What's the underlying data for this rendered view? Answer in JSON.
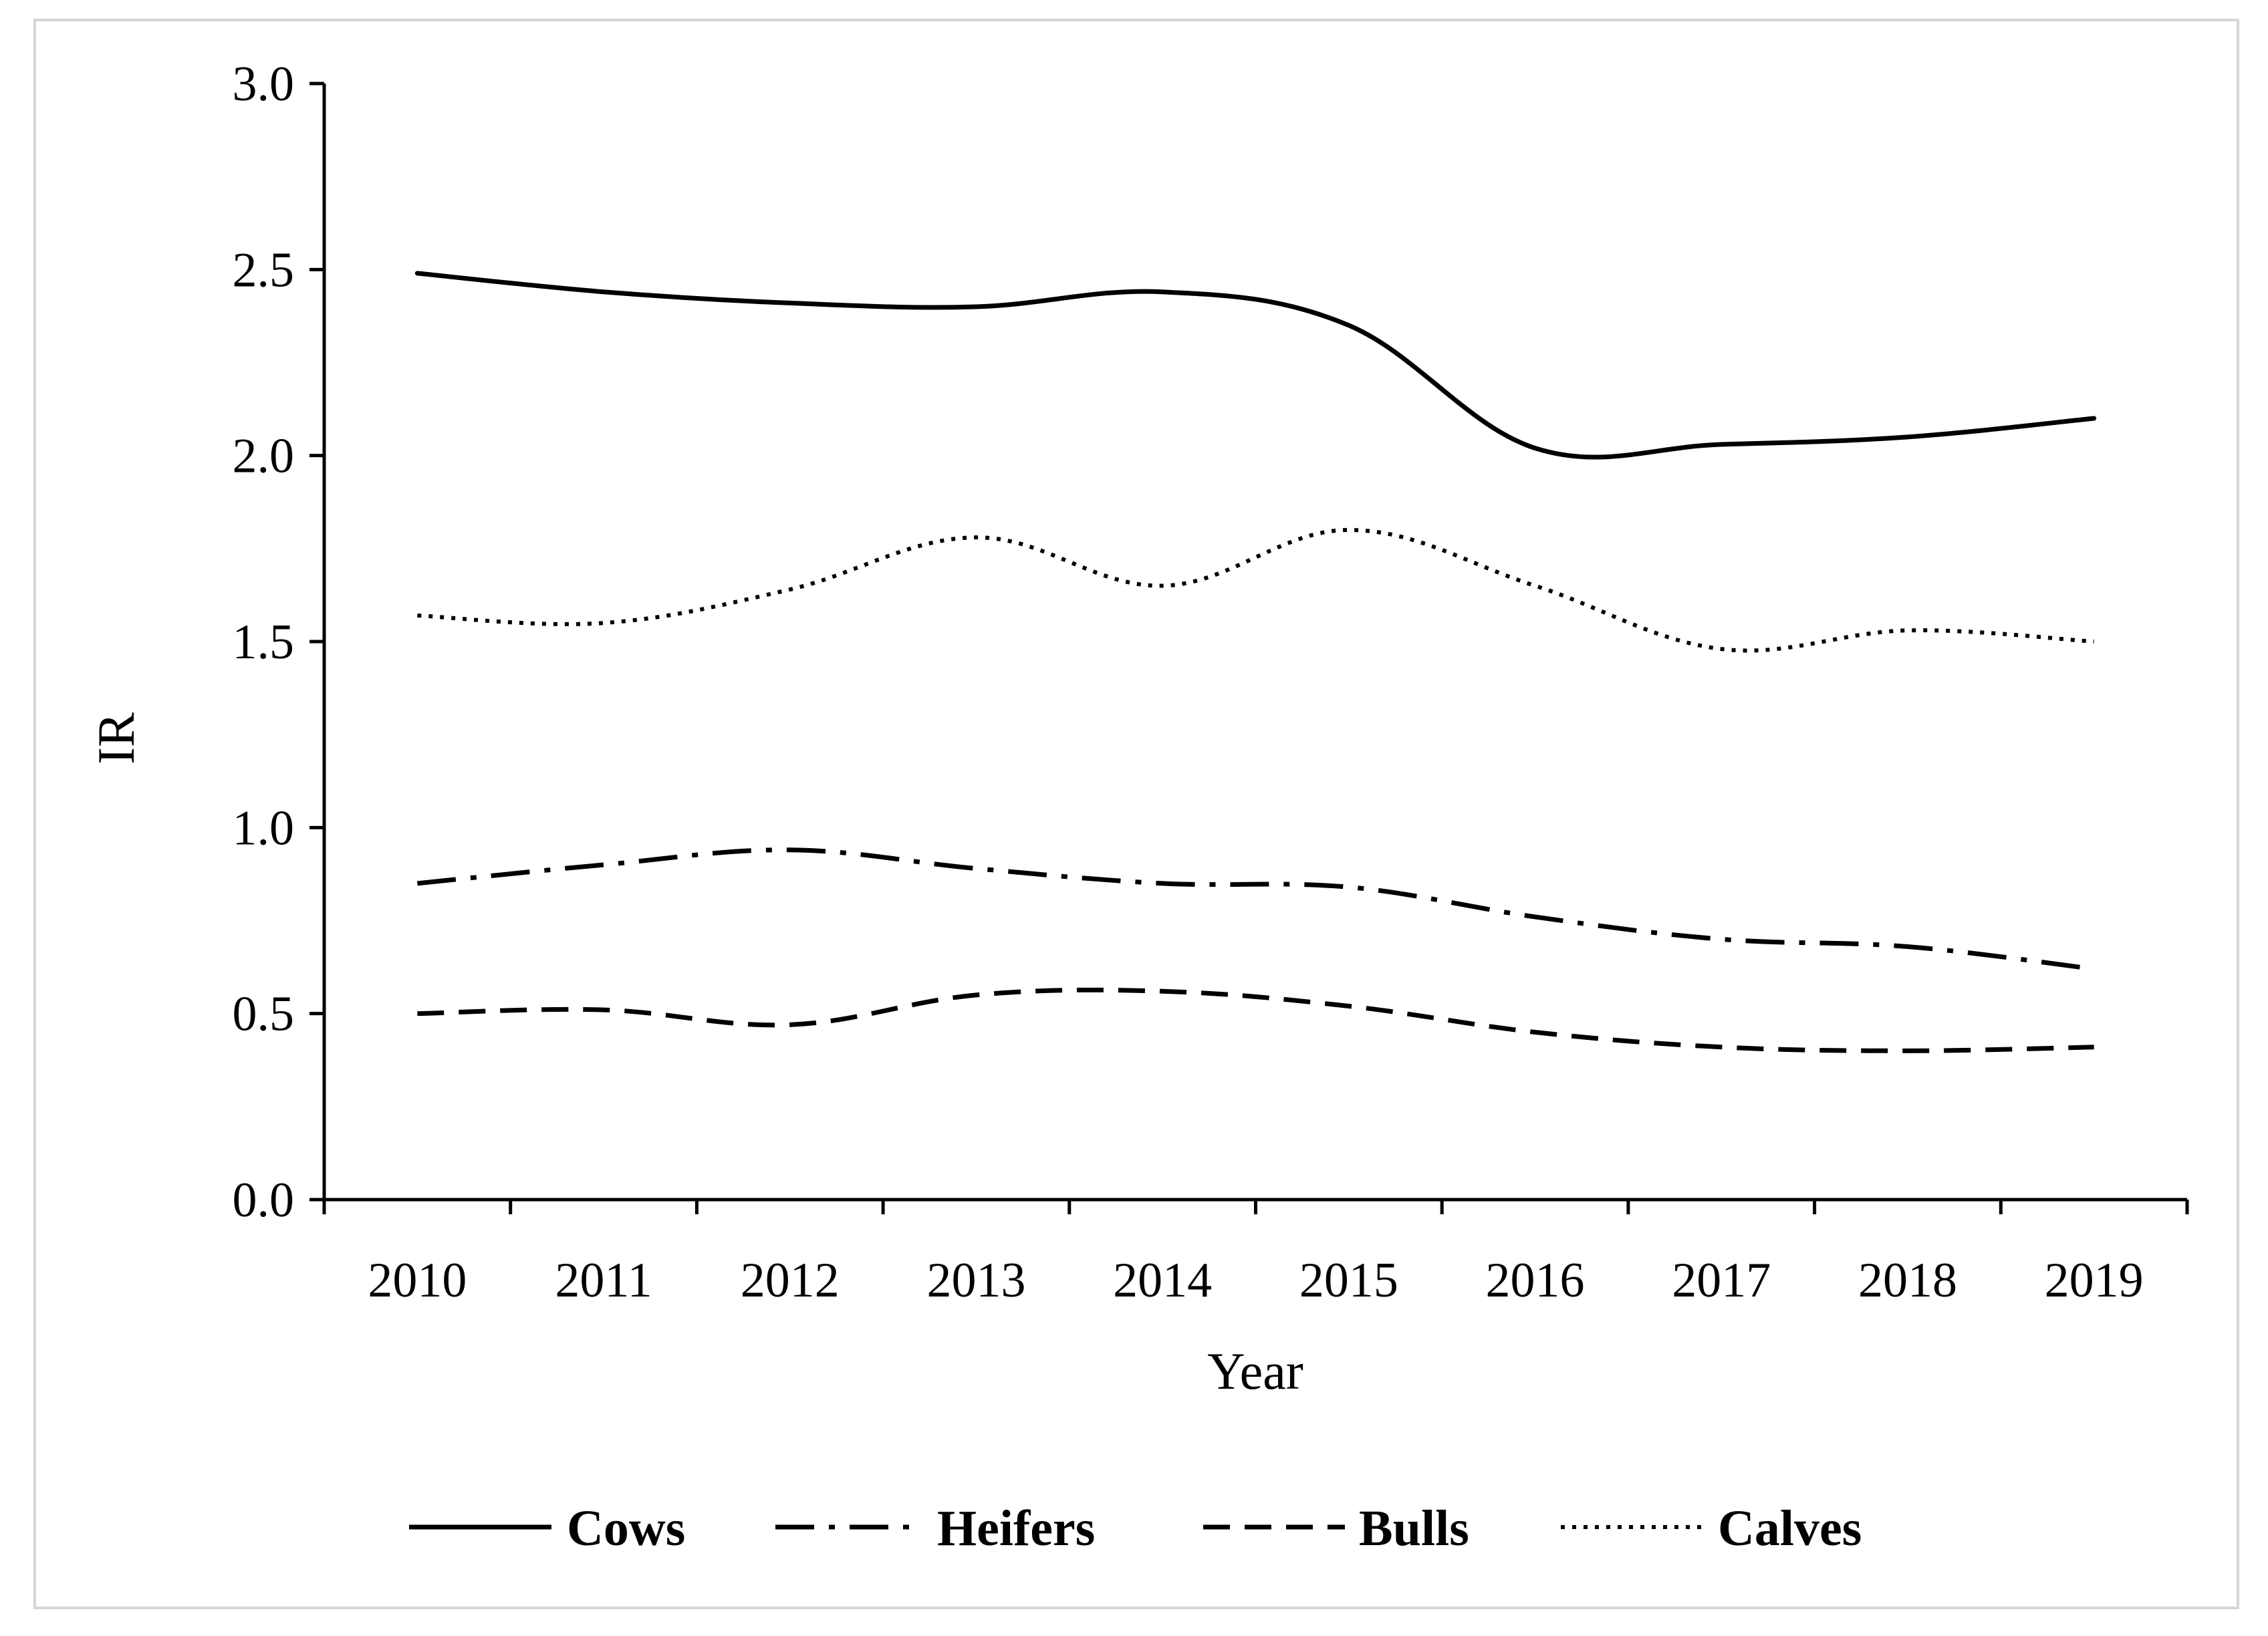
{
  "chart_data": {
    "type": "line",
    "title": "",
    "xlabel": "Year",
    "ylabel": "IR",
    "ylim": [
      0.0,
      3.0
    ],
    "yticks": [
      "0.0",
      "0.5",
      "1.0",
      "1.5",
      "2.0",
      "2.5",
      "3.0"
    ],
    "categories": [
      "2010",
      "2011",
      "2012",
      "2013",
      "2014",
      "2015",
      "2016",
      "2017",
      "2018",
      "2019"
    ],
    "grid": false,
    "legend_position": "bottom",
    "series": [
      {
        "name": "Cows",
        "style": "solid",
        "color": "#000000",
        "values": [
          2.49,
          2.44,
          2.41,
          2.4,
          2.44,
          2.35,
          2.02,
          2.03,
          2.05,
          2.1
        ]
      },
      {
        "name": "Heifers",
        "style": "dash-dot",
        "color": "#000000",
        "values": [
          0.85,
          0.9,
          0.94,
          0.89,
          0.85,
          0.84,
          0.76,
          0.7,
          0.68,
          0.62
        ]
      },
      {
        "name": "Bulls",
        "style": "dashed",
        "color": "#000000",
        "values": [
          0.5,
          0.51,
          0.47,
          0.55,
          0.56,
          0.52,
          0.45,
          0.41,
          0.4,
          0.41
        ]
      },
      {
        "name": "Calves",
        "style": "dotted",
        "color": "#000000",
        "values": [
          1.57,
          1.55,
          1.64,
          1.78,
          1.65,
          1.8,
          1.65,
          1.48,
          1.53,
          1.5
        ]
      }
    ]
  }
}
